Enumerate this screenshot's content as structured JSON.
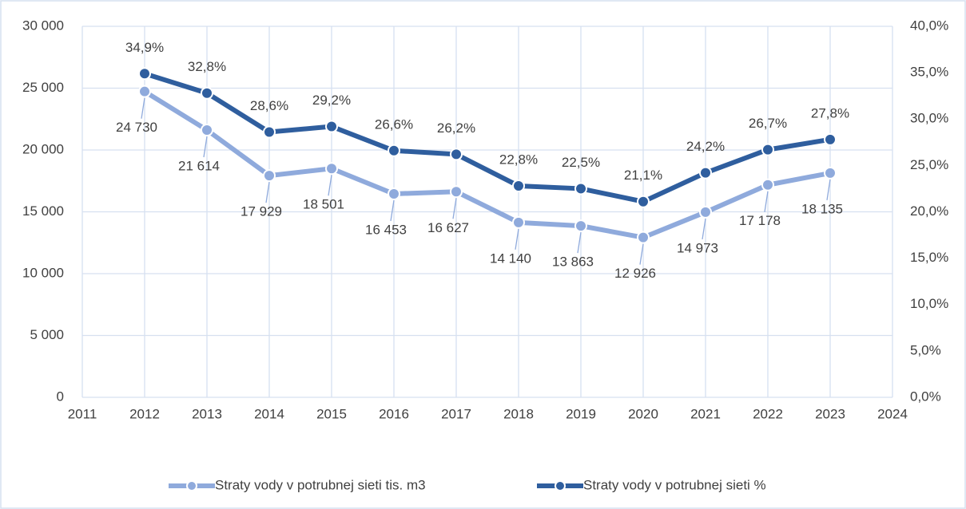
{
  "chart_data": {
    "type": "line",
    "x": [
      2012,
      2013,
      2014,
      2015,
      2016,
      2017,
      2018,
      2019,
      2020,
      2021,
      2022,
      2023
    ],
    "xlim": [
      2011,
      2024
    ],
    "xticks": [
      2011,
      2012,
      2013,
      2014,
      2015,
      2016,
      2017,
      2018,
      2019,
      2020,
      2021,
      2022,
      2023,
      2024
    ],
    "ylim": [
      0,
      30000
    ],
    "yticks": [
      0,
      {
        "value": 5000,
        "label": "5 000"
      },
      {
        "value": 10000,
        "label": "10 000"
      },
      {
        "value": 15000,
        "label": "15 000"
      },
      {
        "value": 20000,
        "label": "20 000"
      },
      {
        "value": 25000,
        "label": "25 000"
      },
      {
        "value": 30000,
        "label": "30 000"
      }
    ],
    "y2lim": [
      0,
      40
    ],
    "y2ticks": [
      {
        "value": 0,
        "label": "0,0%"
      },
      {
        "value": 5,
        "label": "5,0%"
      },
      {
        "value": 10,
        "label": "10,0%"
      },
      {
        "value": 15,
        "label": "15,0%"
      },
      {
        "value": 20,
        "label": "20,0%"
      },
      {
        "value": 25,
        "label": "25,0%"
      },
      {
        "value": 30,
        "label": "30,0%"
      },
      {
        "value": 35,
        "label": "35,0%"
      },
      {
        "value": 40,
        "label": "40,0%"
      }
    ],
    "grid": true,
    "legend": "bottom",
    "series": [
      {
        "name": "Straty vody v potrubnej sieti tis. m3",
        "color": "#8faadc",
        "values": [
          24730,
          21614,
          17929,
          18501,
          16453,
          16627,
          14140,
          13863,
          12926,
          14973,
          17178,
          18135
        ],
        "value_labels": [
          "24 730",
          "21 614",
          "17 929",
          "18 501",
          "16 453",
          "16 627",
          "14 140",
          "13 863",
          "12 926",
          "14 973",
          "17 178",
          "18 135"
        ]
      },
      {
        "name": "Straty vody v potrubnej sieti %",
        "color": "#2f5e9e",
        "axis": "y2",
        "values": [
          34.9,
          32.8,
          28.6,
          29.2,
          26.6,
          26.2,
          22.8,
          22.5,
          21.1,
          24.2,
          26.7,
          27.8
        ],
        "value_labels": [
          "34,9%",
          "32,8%",
          "28,6%",
          "29,2%",
          "26,6%",
          "26,2%",
          "22,8%",
          "22,5%",
          "21,1%",
          "24,2%",
          "26,7%",
          "27,8%"
        ]
      }
    ]
  }
}
